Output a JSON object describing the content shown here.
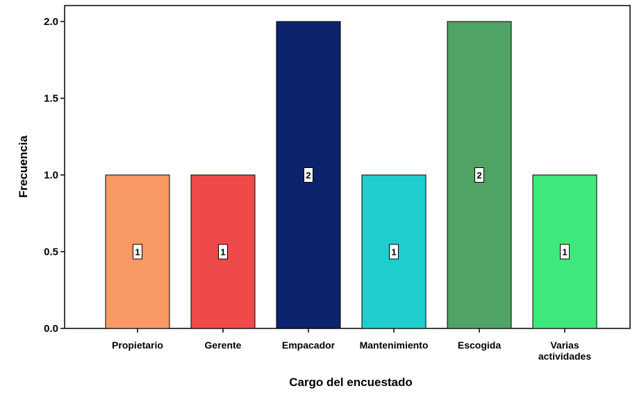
{
  "chart_data": {
    "type": "bar",
    "title": "",
    "xlabel": "Cargo del encuestado",
    "ylabel": "Frecuencia",
    "categories": [
      "Propietario",
      "Gerente",
      "Empacador",
      "Mantenimiento",
      "Escogida",
      "Varias actividades"
    ],
    "category_lines": [
      [
        "Propietario"
      ],
      [
        "Gerente"
      ],
      [
        "Empacador"
      ],
      [
        "Mantenimiento"
      ],
      [
        "Escogida"
      ],
      [
        "Varias",
        "actividades"
      ]
    ],
    "values": [
      1,
      1,
      2,
      1,
      2,
      1
    ],
    "data_labels": [
      "1",
      "1",
      "2",
      "1",
      "2",
      "1"
    ],
    "colors": [
      "#f99963",
      "#ee4a4a",
      "#0c246d",
      "#1fcdcd",
      "#4fa364",
      "#3fe87a"
    ],
    "ylim": [
      0,
      2.0
    ],
    "yticks": [
      0.0,
      0.5,
      1.0,
      1.5,
      2.0
    ],
    "ytick_labels": [
      "0.0",
      "0.5",
      "1.0",
      "1.5",
      "2.0"
    ],
    "grid": false,
    "legend": "none"
  }
}
